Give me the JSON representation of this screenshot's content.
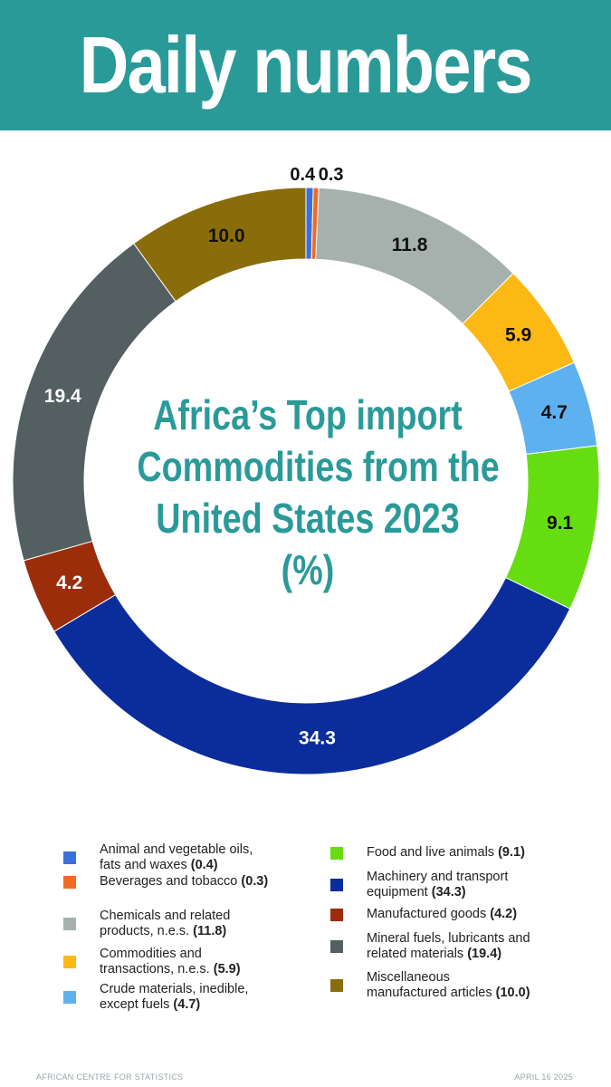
{
  "header": {
    "title": "Daily numbers"
  },
  "center_title_lines": [
    "Africa’s Top import",
    "Commodities from the",
    "United States 2023",
    "(%)"
  ],
  "chart_data": {
    "type": "pie",
    "donut": true,
    "title": "Africa’s Top import Commodities from the United States 2023 (%)",
    "labels": [
      "Animal and vegetable oils, fats and waxes",
      "Beverages and tobacco",
      "Chemicals and related products, n.e.s.",
      "Commodities and transactions, n.e.s.",
      "Crude materials, inedible, except fuels",
      "Food and live animals",
      "Machinery and transport equipment",
      "Manufactured goods",
      "Mineral fuels, lubricants and related materials",
      "Miscellaneous manufactured articles"
    ],
    "values": [
      0.4,
      0.3,
      11.8,
      5.9,
      4.7,
      9.1,
      34.3,
      4.2,
      19.4,
      10.0
    ],
    "value_labels": [
      "0.4",
      "0.3",
      "11.8",
      "5.9",
      "4.7",
      "9.1",
      "34.3",
      "4.2",
      "19.4",
      "10.0"
    ],
    "colors": [
      "#3b6fe0",
      "#f26a21",
      "#a6b1ae",
      "#fdb813",
      "#5eb1ef",
      "#66dd11",
      "#0a2d9b",
      "#9b2d0a",
      "#535f61",
      "#8a6d0b"
    ],
    "label_colors": [
      "#111111",
      "#111111",
      "#111111",
      "#111111",
      "#111111",
      "#111111",
      "#ffffff",
      "#ffffff",
      "#ffffff",
      "#111111"
    ]
  },
  "legend": {
    "left": [
      {
        "name": "Animal and vegetable oils, fats and waxes",
        "line1": "Animal and vegetable oils,",
        "line2": "fats and waxes",
        "value": "(0.4)",
        "color": "#3b6fe0"
      },
      {
        "name": "Beverages and tobacco",
        "line1": "",
        "line2": "Beverages and tobacco",
        "value": "(0.3)",
        "color": "#f26a21"
      },
      {
        "name": "Chemicals and related products, n.e.s.",
        "line1": "Chemicals and related",
        "line2": "products, n.e.s.",
        "value": "(11.8)",
        "color": "#a6b1ae"
      },
      {
        "name": "Commodities and transactions, n.e.s.",
        "line1": "Commodities and",
        "line2": "transactions, n.e.s.",
        "value": "(5.9)",
        "color": "#fdb813"
      },
      {
        "name": "Crude materials, inedible, except fuels",
        "line1": "Crude materials, inedible,",
        "line2": "except fuels",
        "value": "(4.7)",
        "color": "#5eb1ef"
      }
    ],
    "right": [
      {
        "name": "Food and live animals",
        "line1": "",
        "line2": "Food and live animals",
        "value": "(9.1)",
        "color": "#66dd11"
      },
      {
        "name": "Machinery and transport equipment",
        "line1": "Machinery and transport",
        "line2": "equipment",
        "value": "(34.3)",
        "color": "#0a2d9b"
      },
      {
        "name": "Manufactured goods",
        "line1": "",
        "line2": "Manufactured goods",
        "value": "(4.2)",
        "color": "#9b2d0a"
      },
      {
        "name": "Mineral fuels, lubricants and related materials",
        "line1": "Mineral fuels, lubricants and",
        "line2": "related materials",
        "value": "(19.4)",
        "color": "#535f61"
      },
      {
        "name": "Miscellaneous manufactured articles",
        "line1": "Miscellaneous",
        "line2": "manufactured articles",
        "value": "(10.0)",
        "color": "#8a6d0b"
      }
    ]
  },
  "footer": {
    "source": "AFRICAN CENTRE FOR STATISTICS",
    "date": "APRIL 16 2025"
  }
}
